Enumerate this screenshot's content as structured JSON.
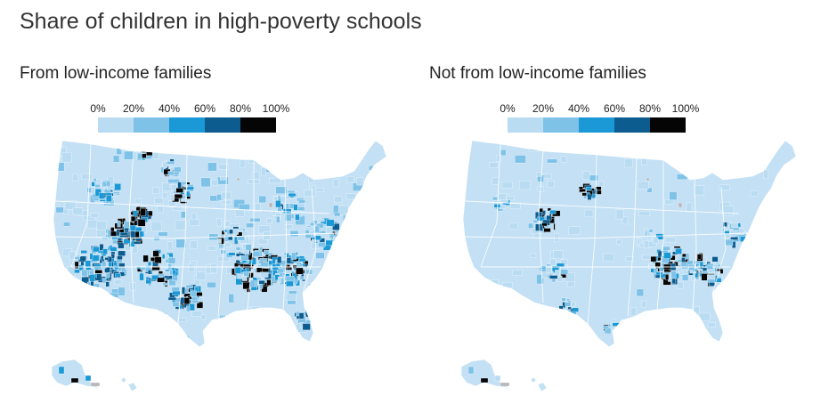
{
  "title": "Share of children in high-poverty schools",
  "legend": {
    "ticks": [
      "0%",
      "20%",
      "40%",
      "60%",
      "80%",
      "100%"
    ],
    "colors": [
      "#b9dcf3",
      "#7fc2e8",
      "#1b98d6",
      "#0c5c8f",
      "#050505"
    ]
  },
  "panels": [
    {
      "title": "From low-income families",
      "shading": "heavy"
    },
    {
      "title": "Not from low-income families",
      "shading": "light"
    }
  ],
  "map_colors": {
    "base": "#c3e0f5",
    "border": "#ffffff",
    "gray": "#b7b7b7"
  }
}
